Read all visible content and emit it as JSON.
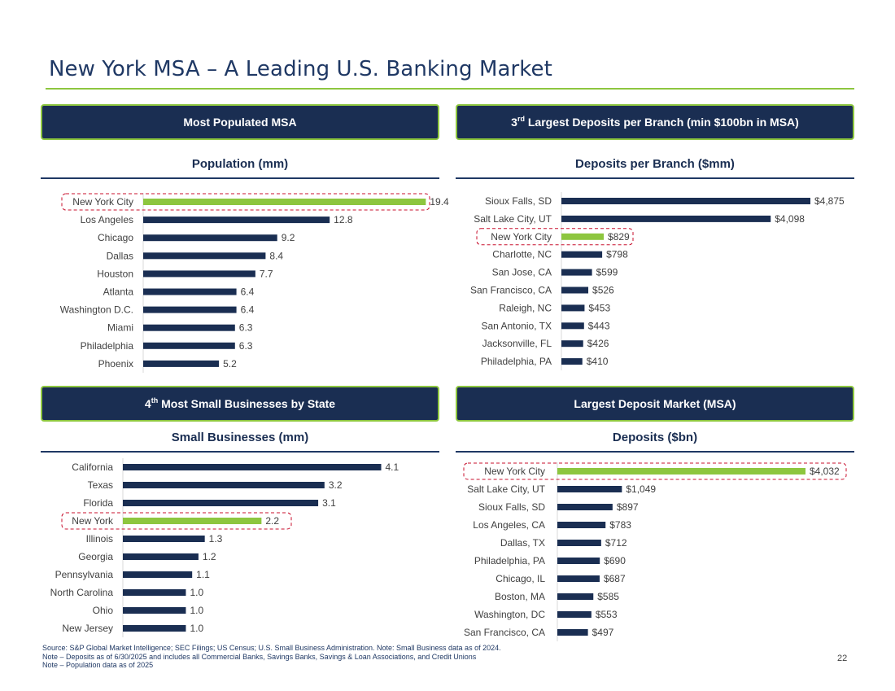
{
  "page": {
    "title": "New York MSA – A Leading U.S. Banking Market",
    "page_number": "22",
    "source_lines": [
      "Source: S&P Global Market Intelligence; SEC Filings; US Census; U.S. Small Business Administration. Note: Small Business data as of 2024.",
      "Note – Deposits as of 6/30/2025 and includes all Commercial Banks, Savings Banks, Savings & Loan Associations, and Credit Unions",
      "Note – Population data as of 2025"
    ]
  },
  "colors": {
    "navy": "#1a2e52",
    "highlight": "#8dc63f",
    "callout_border": "#c8102e",
    "text": "#404040"
  },
  "panels": {
    "population": {
      "header": "Most Populated MSA",
      "chart_title": "Population (mm)"
    },
    "deposits_branch": {
      "header_prefix": "3",
      "header_sup": "rd",
      "header_suffix": " Largest Deposits per Branch (min $100bn in MSA)",
      "chart_title": "Deposits per Branch ($mm)"
    },
    "small_business": {
      "header_prefix": "4",
      "header_sup": "th",
      "header_suffix": " Most Small Businesses by State",
      "chart_title": "Small Businesses (mm)"
    },
    "deposits_msa": {
      "header": "Largest Deposit Market (MSA)",
      "chart_title": "Deposits ($bn)"
    }
  },
  "chart_data": [
    {
      "type": "bar",
      "orientation": "horizontal",
      "title": "Population (mm)",
      "categories": [
        "New York City",
        "Los Angeles",
        "Chicago",
        "Dallas",
        "Houston",
        "Atlanta",
        "Washington D.C.",
        "Miami",
        "Philadelphia",
        "Phoenix"
      ],
      "values": [
        19.4,
        12.8,
        9.2,
        8.4,
        7.7,
        6.4,
        6.4,
        6.3,
        6.3,
        5.2
      ],
      "labels": [
        "19.4",
        "12.8",
        "9.2",
        "8.4",
        "7.7",
        "6.4",
        "6.4",
        "6.3",
        "6.3",
        "5.2"
      ],
      "highlight_index": 0,
      "xlim": [
        0,
        21
      ]
    },
    {
      "type": "bar",
      "orientation": "horizontal",
      "title": "Deposits per Branch ($mm)",
      "categories": [
        "Sioux Falls, SD",
        "Salt Lake City, UT",
        "New York City",
        "Charlotte, NC",
        "San Jose, CA",
        "San Francisco, CA",
        "Raleigh, NC",
        "San Antonio, TX",
        "Jacksonville, FL",
        "Philadelphia, PA"
      ],
      "values": [
        4875,
        4098,
        829,
        798,
        599,
        526,
        453,
        443,
        426,
        410
      ],
      "labels": [
        "$4,875",
        "$4,098",
        "$829",
        "$798",
        "$599",
        "$526",
        "$453",
        "$443",
        "$426",
        "$410"
      ],
      "highlight_index": 2,
      "xlim": [
        0,
        4875
      ]
    },
    {
      "type": "bar",
      "orientation": "horizontal",
      "title": "Small Businesses (mm)",
      "categories": [
        "California",
        "Texas",
        "Florida",
        "New York",
        "Illinois",
        "Georgia",
        "Pennsylvania",
        "North Carolina",
        "Ohio",
        "New Jersey"
      ],
      "values": [
        4.1,
        3.2,
        3.1,
        2.2,
        1.3,
        1.2,
        1.1,
        1.0,
        1.0,
        1.0
      ],
      "labels": [
        "4.1",
        "3.2",
        "3.1",
        "2.2",
        "1.3",
        "1.2",
        "1.1",
        "1.0",
        "1.0",
        "1.0"
      ],
      "highlight_index": 3,
      "xlim": [
        0,
        4.3
      ]
    },
    {
      "type": "bar",
      "orientation": "horizontal",
      "title": "Deposits ($bn)",
      "categories": [
        "New York City",
        "Salt Lake City, UT",
        "Sioux Falls, SD",
        "Los Angeles, CA",
        "Dallas, TX",
        "Philadelphia, PA",
        "Chicago, IL",
        "Boston, MA",
        "Washington, DC",
        "San Francisco, CA"
      ],
      "values": [
        4032,
        1049,
        897,
        783,
        712,
        690,
        687,
        585,
        553,
        497
      ],
      "labels": [
        "$4,032",
        "$1,049",
        "$897",
        "$783",
        "$712",
        "$690",
        "$687",
        "$585",
        "$553",
        "$497"
      ],
      "highlight_index": 0,
      "xlim": [
        0,
        4032
      ]
    }
  ]
}
